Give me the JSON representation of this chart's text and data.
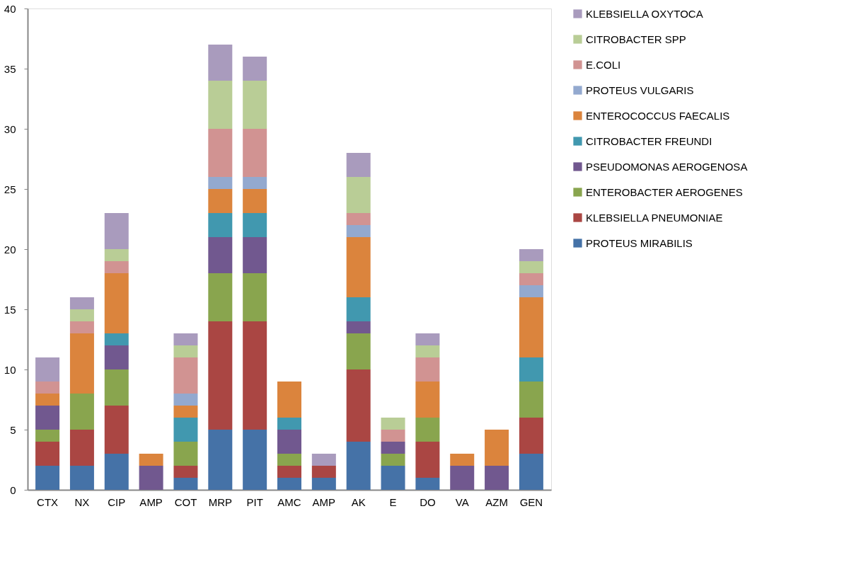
{
  "chart_data": {
    "type": "bar",
    "stacked": true,
    "categories": [
      "CTX",
      "NX",
      "CIP",
      "AMP",
      "COT",
      "MRP",
      "PIT",
      "AMC",
      "AMP",
      "AK",
      "E",
      "DO",
      "VA",
      "AZM",
      "GEN"
    ],
    "series": [
      {
        "name": "PROTEUS MIRABILIS",
        "color": "#4572a7",
        "values": [
          2,
          2,
          3,
          0,
          1,
          5,
          5,
          1,
          1,
          4,
          2,
          1,
          0,
          0,
          3
        ]
      },
      {
        "name": "KLEBSIELLA PNEUMONIAE",
        "color": "#aa4643",
        "values": [
          2,
          3,
          4,
          0,
          1,
          9,
          9,
          1,
          1,
          6,
          0,
          3,
          0,
          0,
          3
        ]
      },
      {
        "name": "ENTEROBACTER AEROGENES",
        "color": "#89a54e",
        "values": [
          1,
          3,
          3,
          0,
          2,
          4,
          4,
          1,
          0,
          3,
          1,
          2,
          0,
          0,
          3
        ]
      },
      {
        "name": "PSEUDOMONAS AEROGENOSA",
        "color": "#71588f",
        "values": [
          2,
          0,
          2,
          2,
          0,
          3,
          3,
          2,
          0,
          1,
          1,
          0,
          2,
          2,
          0
        ]
      },
      {
        "name": "CITROBACTER FREUNDI",
        "color": "#4198af",
        "values": [
          0,
          0,
          1,
          0,
          2,
          2,
          2,
          1,
          0,
          2,
          0,
          0,
          0,
          0,
          2
        ]
      },
      {
        "name": "ENTEROCOCCUS FAECALIS",
        "color": "#db843d",
        "values": [
          1,
          5,
          5,
          1,
          1,
          2,
          2,
          3,
          0,
          5,
          0,
          3,
          1,
          3,
          5
        ]
      },
      {
        "name": "PROTEUS VULGARIS",
        "color": "#93a9cf",
        "values": [
          0,
          0,
          0,
          0,
          1,
          1,
          1,
          0,
          0,
          1,
          0,
          0,
          0,
          0,
          1
        ]
      },
      {
        "name": "E.COLI",
        "color": "#d19392",
        "values": [
          1,
          1,
          1,
          0,
          3,
          4,
          4,
          0,
          0,
          1,
          1,
          2,
          0,
          0,
          1
        ]
      },
      {
        "name": "CITROBACTER SPP",
        "color": "#b9cd96",
        "values": [
          0,
          1,
          1,
          0,
          1,
          4,
          4,
          0,
          0,
          3,
          1,
          1,
          0,
          0,
          1
        ]
      },
      {
        "name": "KLEBSIELLA OXYTOCA",
        "color": "#a99bbd",
        "values": [
          2,
          1,
          3,
          0,
          1,
          3,
          2,
          0,
          1,
          2,
          0,
          1,
          0,
          0,
          1
        ]
      }
    ],
    "ylim": [
      0,
      40
    ],
    "yticks": [
      0,
      5,
      10,
      15,
      20,
      25,
      30,
      35,
      40
    ],
    "legend": "right",
    "grid": false
  }
}
